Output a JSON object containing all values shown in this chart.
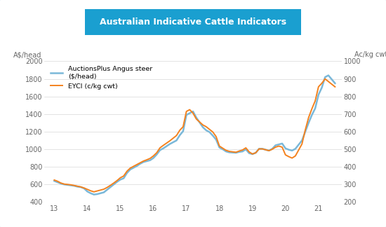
{
  "title": "Australian Indicative Cattle Indicators",
  "title_color": "#ffffff",
  "title_bg_color": "#1a9fd0",
  "ylabel_left": "A$/head",
  "ylabel_right": "Ac/kg cwt",
  "ylim_left": [
    400,
    2000
  ],
  "ylim_right": [
    200,
    1000
  ],
  "yticks_left": [
    400,
    600,
    800,
    1000,
    1200,
    1400,
    1600,
    1800,
    2000
  ],
  "yticks_right": [
    200,
    300,
    400,
    500,
    600,
    700,
    800,
    900,
    1000
  ],
  "xticks": [
    13,
    14,
    15,
    16,
    17,
    18,
    19,
    20,
    21
  ],
  "xlim": [
    12.7,
    21.7
  ],
  "legend_blue": "AuctionsPlus Angus steer\n($/head)",
  "legend_orange": "EYCI (c/kg cwt)",
  "line_blue_color": "#7ab8d9",
  "line_orange_color": "#f4821e",
  "background_color": "#ffffff",
  "border_color": "#1a9fd0",
  "angus_x": [
    13.0,
    13.1,
    13.2,
    13.3,
    13.5,
    13.6,
    13.7,
    13.8,
    13.9,
    14.0,
    14.1,
    14.2,
    14.3,
    14.5,
    14.6,
    14.7,
    14.8,
    14.9,
    15.0,
    15.1,
    15.2,
    15.3,
    15.5,
    15.6,
    15.7,
    15.8,
    15.9,
    16.0,
    16.1,
    16.2,
    16.3,
    16.5,
    16.6,
    16.7,
    16.8,
    16.9,
    17.0,
    17.1,
    17.2,
    17.3,
    17.5,
    17.6,
    17.7,
    17.8,
    17.9,
    18.0,
    18.1,
    18.2,
    18.3,
    18.5,
    18.6,
    18.7,
    18.8,
    18.9,
    19.0,
    19.1,
    19.2,
    19.3,
    19.5,
    19.6,
    19.7,
    19.8,
    19.9,
    20.0,
    20.1,
    20.2,
    20.3,
    20.5,
    20.6,
    20.7,
    20.8,
    20.9,
    21.0,
    21.1,
    21.2,
    21.3,
    21.5
  ],
  "angus_y": [
    640,
    625,
    610,
    600,
    590,
    585,
    575,
    570,
    555,
    520,
    500,
    485,
    490,
    510,
    540,
    570,
    600,
    630,
    655,
    670,
    730,
    770,
    810,
    835,
    855,
    865,
    875,
    900,
    940,
    990,
    1010,
    1060,
    1080,
    1100,
    1160,
    1205,
    1390,
    1410,
    1430,
    1360,
    1250,
    1215,
    1195,
    1155,
    1110,
    1020,
    1000,
    975,
    965,
    960,
    970,
    975,
    1000,
    955,
    945,
    960,
    1005,
    1005,
    985,
    1005,
    1045,
    1055,
    1065,
    1010,
    995,
    985,
    1005,
    1100,
    1200,
    1300,
    1390,
    1465,
    1620,
    1700,
    1820,
    1840,
    1750
  ],
  "eyci_y": [
    325,
    318,
    308,
    302,
    298,
    294,
    290,
    286,
    280,
    272,
    264,
    258,
    263,
    273,
    283,
    295,
    308,
    322,
    338,
    348,
    375,
    393,
    413,
    423,
    433,
    440,
    448,
    462,
    480,
    508,
    522,
    548,
    563,
    578,
    608,
    628,
    715,
    725,
    705,
    672,
    638,
    628,
    613,
    598,
    572,
    518,
    506,
    494,
    488,
    483,
    490,
    496,
    508,
    485,
    473,
    480,
    502,
    502,
    492,
    500,
    512,
    518,
    512,
    468,
    458,
    450,
    462,
    530,
    610,
    680,
    730,
    775,
    855,
    875,
    900,
    885,
    855
  ]
}
